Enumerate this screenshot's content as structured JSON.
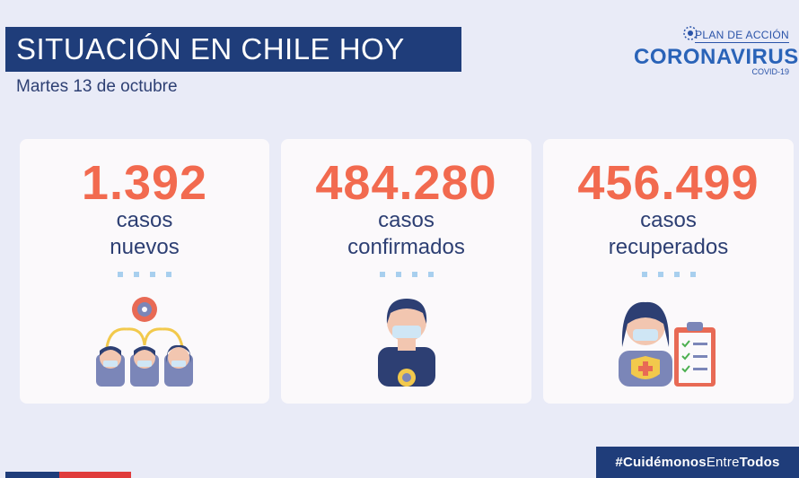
{
  "header": {
    "title": "SITUACIÓN EN CHILE HOY",
    "date": "Martes 13 de octubre"
  },
  "logo": {
    "top_text": "PLAN DE ACCIÓN",
    "main_text": "CORONAVIRUS",
    "sub_text": "COVID-19"
  },
  "cards": [
    {
      "number": "1.392",
      "label_line1": "casos",
      "label_line2": "nuevos",
      "icon": "people-network-icon"
    },
    {
      "number": "484.280",
      "label_line1": "casos",
      "label_line2": "confirmados",
      "icon": "masked-person-virus-icon"
    },
    {
      "number": "456.499",
      "label_line1": "casos",
      "label_line2": "recuperados",
      "icon": "recovered-person-clipboard-icon"
    }
  ],
  "hashtag": {
    "bold": "#Cuidémonos",
    "light": "Entre",
    "bold2": "Todos"
  },
  "colors": {
    "navy": "#1f3d7a",
    "accent": "#f26a4f",
    "background": "#e9ebf7",
    "card": "#fbf9fb"
  }
}
